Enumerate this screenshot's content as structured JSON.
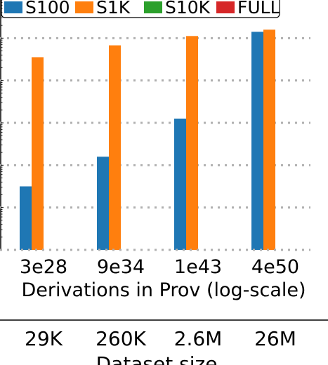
{
  "chart_data": {
    "type": "bar",
    "log_scale": true,
    "grid": "horizontal-dotted",
    "legend_placement": "top",
    "categories": [
      "3e28",
      "9e34",
      "1e43",
      "4e50"
    ],
    "xlabel": "Derivations in Prov (log-scale)",
    "secondary_x": {
      "label": "Dataset size",
      "ticks": [
        "29K",
        "260K",
        "2.6M",
        "26M"
      ]
    },
    "ylim_log10": [
      0,
      6
    ],
    "y_gridlines_log10": [
      1,
      2,
      3,
      4,
      5
    ],
    "series": [
      {
        "name": "S100",
        "color": "#1f77b4",
        "values_log10": [
          1.5,
          2.2,
          3.1,
          5.15
        ]
      },
      {
        "name": "S1K",
        "color": "#ff7f0e",
        "values_log10": [
          4.55,
          4.83,
          5.05,
          5.2
        ]
      },
      {
        "name": "S10K",
        "color": "#2ca02c",
        "values_log10": [
          null,
          null,
          null,
          null
        ]
      },
      {
        "name": "FULL",
        "color": "#d62728",
        "values_log10": [
          null,
          null,
          null,
          null
        ]
      }
    ]
  }
}
